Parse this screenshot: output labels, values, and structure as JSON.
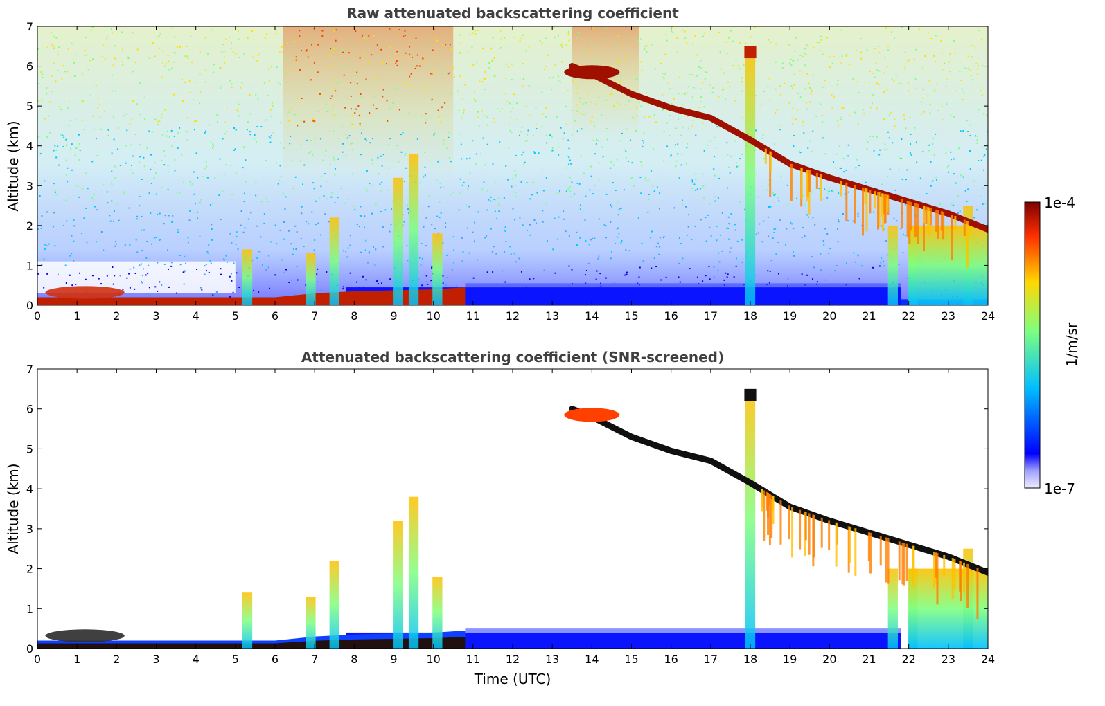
{
  "chart_data": [
    {
      "type": "heatmap",
      "title": "Raw attenuated backscattering coefficient",
      "xlabel": "",
      "ylabel": "Altitude (km)",
      "xlim": [
        0,
        24
      ],
      "ylim": [
        0,
        7
      ],
      "xticks": [
        "0",
        "1",
        "2",
        "3",
        "4",
        "5",
        "6",
        "7",
        "8",
        "9",
        "10",
        "11",
        "12",
        "13",
        "14",
        "15",
        "16",
        "17",
        "18",
        "19",
        "20",
        "21",
        "22",
        "23",
        "24"
      ],
      "yticks": [
        "0",
        "1",
        "2",
        "3",
        "4",
        "5",
        "6",
        "7"
      ],
      "features": {
        "boundary_layer": {
          "t": [
            0,
            2,
            4,
            6,
            7,
            8,
            10,
            10.8
          ],
          "top_km": [
            0.2,
            0.2,
            0.2,
            0.2,
            0.3,
            0.35,
            0.4,
            0.45
          ]
        },
        "cirrus_band": {
          "t": [
            13.5,
            14,
            15,
            16,
            17,
            18,
            19,
            20,
            21,
            22,
            23,
            24
          ],
          "alt_km": [
            6.0,
            5.8,
            5.3,
            4.95,
            4.7,
            4.15,
            3.55,
            3.2,
            2.9,
            2.6,
            2.3,
            1.9
          ]
        },
        "low_cloud_columns": [
          {
            "t": 5.3,
            "top_km": 1.4
          },
          {
            "t": 6.9,
            "top_km": 1.3
          },
          {
            "t": 7.5,
            "top_km": 2.2
          },
          {
            "t": 9.1,
            "top_km": 3.2
          },
          {
            "t": 9.5,
            "top_km": 3.8
          },
          {
            "t": 10.1,
            "top_km": 1.8
          },
          {
            "t": 18.0,
            "top_km": 6.4
          },
          {
            "t": 21.6,
            "top_km": 2.0
          },
          {
            "t": 22.1,
            "top_km": 2.0
          },
          {
            "t": 23.5,
            "top_km": 2.5
          }
        ]
      }
    },
    {
      "type": "heatmap",
      "title": "Attenuated backscattering coefficient (SNR-screened)",
      "xlabel": "Time (UTC)",
      "ylabel": "Altitude (km)",
      "xlim": [
        0,
        24
      ],
      "ylim": [
        0,
        7
      ],
      "xticks": [
        "0",
        "1",
        "2",
        "3",
        "4",
        "5",
        "6",
        "7",
        "8",
        "9",
        "10",
        "11",
        "12",
        "13",
        "14",
        "15",
        "16",
        "17",
        "18",
        "19",
        "20",
        "21",
        "22",
        "23",
        "24"
      ],
      "yticks": [
        "0",
        "1",
        "2",
        "3",
        "4",
        "5",
        "6",
        "7"
      ]
    }
  ],
  "colorbar": {
    "max_label": "1e-4",
    "min_label": "1e-7",
    "unit_label": "1/m/sr",
    "scale": "log",
    "colors": [
      "#e8e8ff",
      "#0000ff",
      "#00c8ff",
      "#7fff7f",
      "#ffe000",
      "#ff4000",
      "#800000"
    ]
  }
}
